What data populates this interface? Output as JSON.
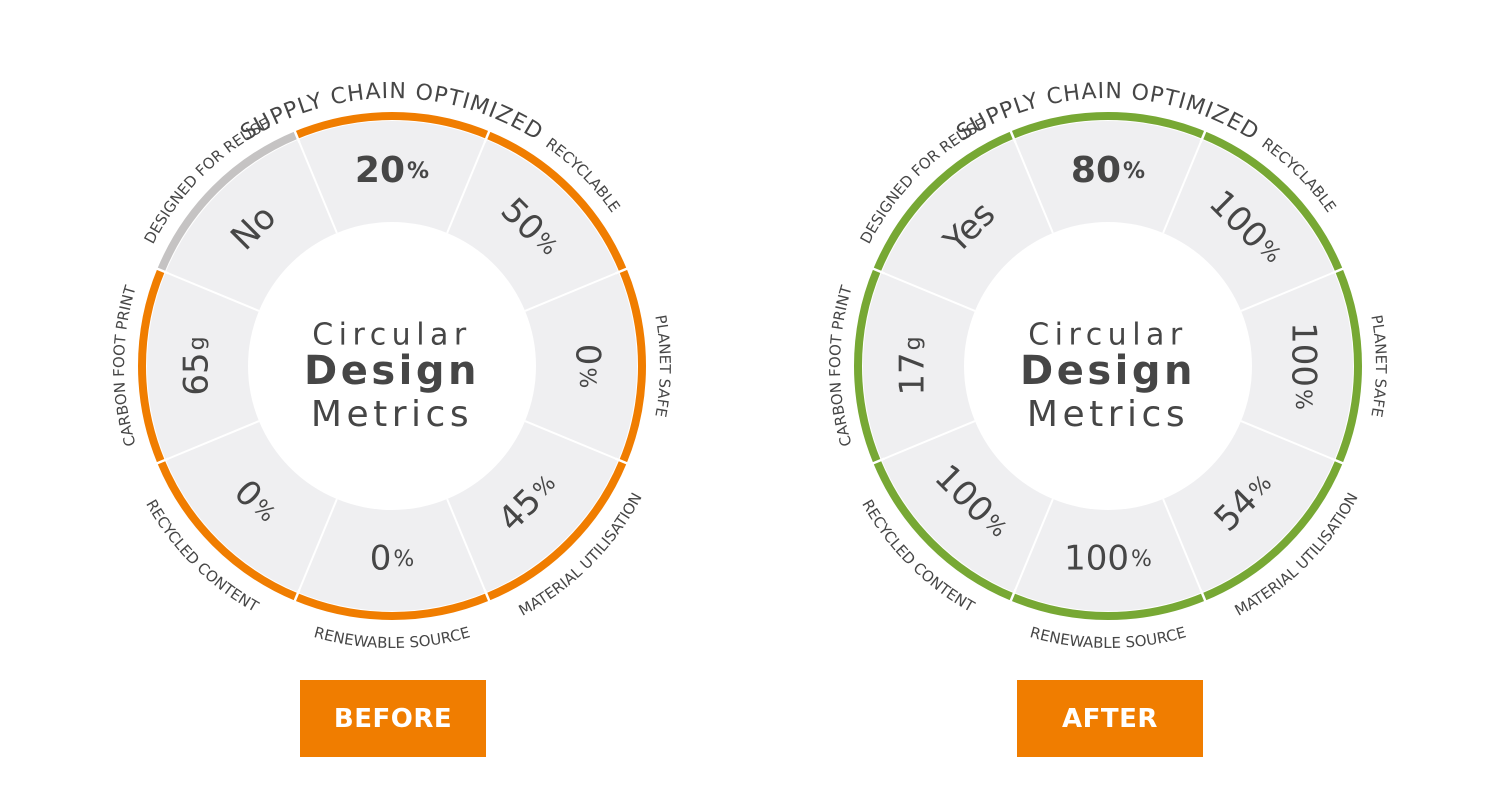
{
  "colors": {
    "segment_fill": "#efeff1",
    "divider": "#ffffff",
    "inner_fill": "#ffffff",
    "text": "#464646",
    "inactive_ring": "#c5c3c3",
    "before_accent": "#f07d00",
    "after_accent": "#77a834",
    "button_fill": "#f07d00",
    "button_text": "#ffffff"
  },
  "panels": [
    {
      "key": "before",
      "button_label": "BEFORE",
      "center": {
        "line1": "Circular",
        "line2": "Design",
        "line3": "Metrics"
      },
      "accent": "#f07d00",
      "segments": [
        {
          "metric": "SUPPLY CHAIN OPTIMIZED",
          "value": "20",
          "unit": "%",
          "ring_active": true
        },
        {
          "metric": "RECYCLABLE",
          "value": "50",
          "unit": "%",
          "ring_active": true
        },
        {
          "metric": "PLANET SAFE",
          "value": "0",
          "unit": "%",
          "ring_active": true
        },
        {
          "metric": "MATERIAL UTILISATION",
          "value": "45",
          "unit": "%",
          "ring_active": true
        },
        {
          "metric": "RENEWABLE SOURCE",
          "value": "0",
          "unit": "%",
          "ring_active": true
        },
        {
          "metric": "RECYCLED CONTENT",
          "value": "0",
          "unit": "%",
          "ring_active": true
        },
        {
          "metric": "CARBON FOOT PRINT",
          "value": "65",
          "unit": "g",
          "ring_active": true
        },
        {
          "metric": "DESIGNED FOR REUSE",
          "value": "No",
          "unit": "",
          "ring_active": false
        }
      ]
    },
    {
      "key": "after",
      "button_label": "AFTER",
      "center": {
        "line1": "Circular",
        "line2": "Design",
        "line3": "Metrics"
      },
      "accent": "#77a834",
      "segments": [
        {
          "metric": "SUPPLY CHAIN OPTIMIZED",
          "value": "80",
          "unit": "%",
          "ring_active": true
        },
        {
          "metric": "RECYCLABLE",
          "value": "100",
          "unit": "%",
          "ring_active": true
        },
        {
          "metric": "PLANET SAFE",
          "value": "100",
          "unit": "%",
          "ring_active": true
        },
        {
          "metric": "MATERIAL UTILISATION",
          "value": "54",
          "unit": "%",
          "ring_active": true
        },
        {
          "metric": "RENEWABLE SOURCE",
          "value": "100",
          "unit": "%",
          "ring_active": true
        },
        {
          "metric": "RECYCLED CONTENT",
          "value": "100",
          "unit": "%",
          "ring_active": true
        },
        {
          "metric": "CARBON FOOT PRINT",
          "value": "17",
          "unit": "g",
          "ring_active": true
        },
        {
          "metric": "DESIGNED FOR REUSE",
          "value": "Yes",
          "unit": "",
          "ring_active": true
        }
      ]
    }
  ]
}
